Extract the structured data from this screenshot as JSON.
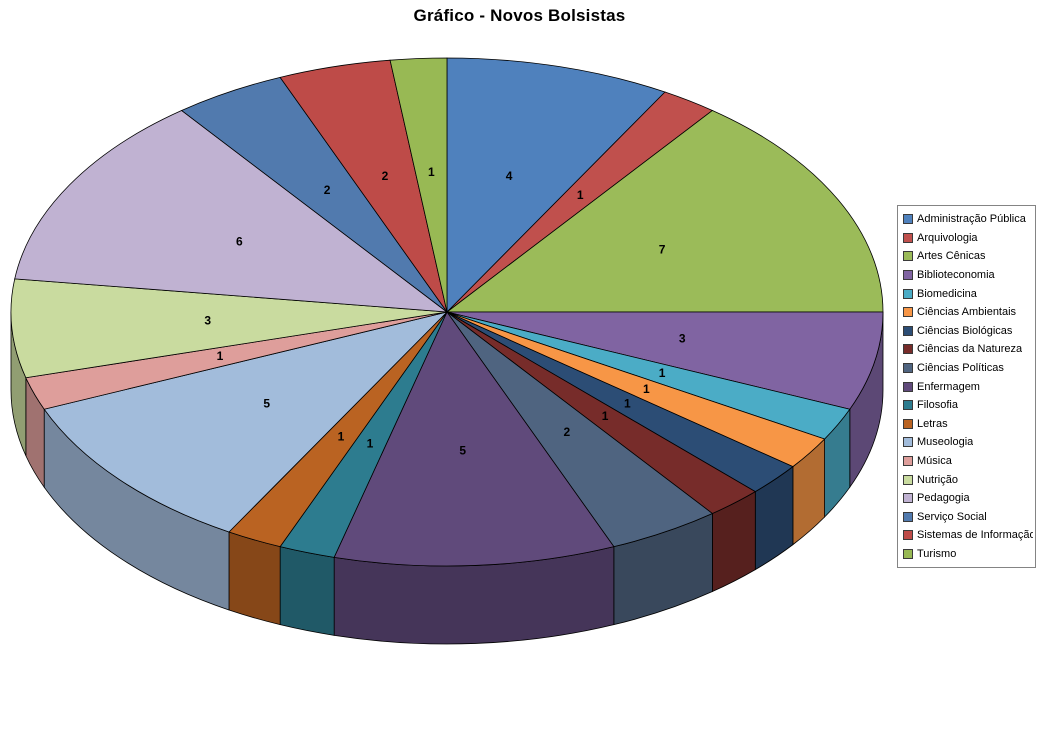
{
  "page": {
    "background_color": "#FFFFFF"
  },
  "chart_data": {
    "type": "pie",
    "style": "3d-pie",
    "title": "Gráfico - Novos Bolsistas",
    "legend_position": "right",
    "data_labels": "value",
    "grid": false,
    "total": 48,
    "categories": [
      "Administração Pública",
      "Arquivologia",
      "Artes Cênicas",
      "Biblioteconomia",
      "Biomedicina",
      "Ciências Ambientais",
      "Ciências Biológicas",
      "Ciências da Natureza",
      "Ciências Políticas",
      "Enfermagem",
      "Filosofia",
      "Letras",
      "Museologia",
      "Música",
      "Nutrição",
      "Pedagogia",
      "Serviço Social",
      "Sistemas de Informação",
      "Turismo"
    ],
    "values": [
      4,
      1,
      7,
      3,
      1,
      1,
      1,
      1,
      2,
      5,
      1,
      1,
      5,
      1,
      3,
      6,
      2,
      2,
      1
    ],
    "colors": [
      "#4F81BD",
      "#C0504D",
      "#9BBB59",
      "#8064A2",
      "#4BACC6",
      "#F79646",
      "#2C4D75",
      "#772C2A",
      "#4F6480",
      "#604A7B",
      "#2D7C8F",
      "#BA6322",
      "#A2BCDB",
      "#DE9E9B",
      "#C9DB9F",
      "#C0B2D2",
      "#517AAE",
      "#BE4B48",
      "#98B954"
    ]
  }
}
